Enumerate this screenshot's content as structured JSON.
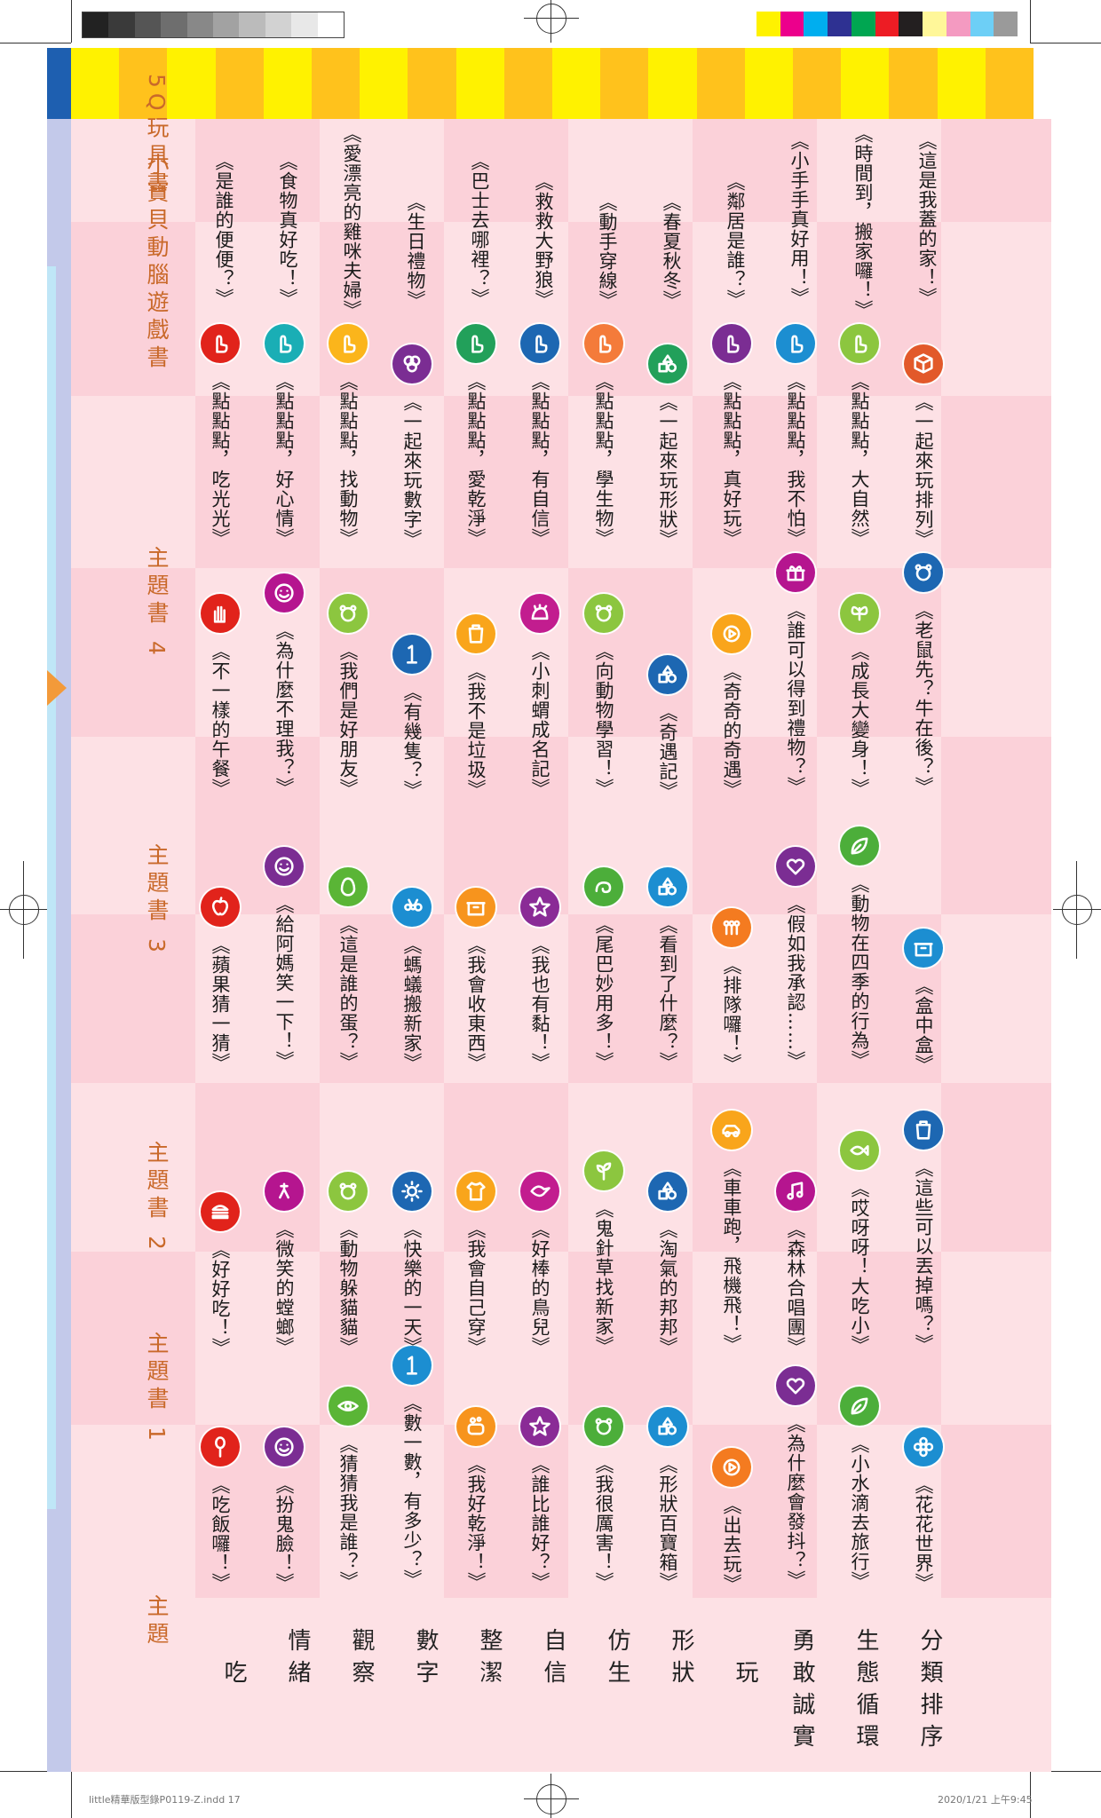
{
  "header": {
    "column_titles": [
      "主題",
      "主題書 1",
      "主題書 2",
      "主題書 3",
      "主題書 4",
      "小寶貝動腦遊戲書",
      "5Q玩具書"
    ]
  },
  "colors": {
    "page_pink": "#fde1e5",
    "band_pink": "#fbd1d9",
    "stripe_yellow": "#fff200",
    "stripe_orange": "#ffc21c",
    "title_orange": "#c9692a",
    "left_bar_blue": "#1e5fb0",
    "left_bar_lavender": "#c3c9ea"
  },
  "rows": [
    {
      "theme": "吃",
      "books": [
        {
          "title": "《吃飯囉！》",
          "icon": "spoon-icon",
          "color": "#e1231b"
        },
        {
          "title": "《好好吃！》",
          "icon": "hamburger-icon",
          "color": "#e1231b"
        },
        {
          "title": "《蘋果猜一猜》",
          "icon": "apple-icon",
          "color": "#e1231b"
        },
        {
          "title": "《不一樣的午餐》",
          "icon": "hand-icon",
          "color": "#e1231b"
        },
        {
          "title": "《點點點，吃光光》",
          "icon": "finger-icon",
          "color": "#e1231b"
        },
        {
          "title": "《是誰的便便？》"
        }
      ]
    },
    {
      "theme": "情緒",
      "books": [
        {
          "title": "《扮鬼臉！》",
          "icon": "face-icon",
          "color": "#7b2d93"
        },
        {
          "title": "《微笑的螳螂》",
          "icon": "mantis-icon",
          "color": "#b5158f"
        },
        {
          "title": "《給阿媽笑一下！》",
          "icon": "face-icon",
          "color": "#7b2d93"
        },
        {
          "title": "《為什麼不理我？》",
          "icon": "face-icon",
          "color": "#b5158f"
        },
        {
          "title": "《點點點，好心情》",
          "icon": "finger-icon",
          "color": "#1aaeb5"
        },
        {
          "title": "《食物真好吃！》"
        }
      ]
    },
    {
      "theme": "觀察",
      "books": [
        {
          "title": "《猜猜我是誰？》",
          "icon": "eye-icon",
          "color": "#5ab536"
        },
        {
          "title": "《動物躲貓貓》",
          "icon": "animal-icon",
          "color": "#8cc63f"
        },
        {
          "title": "《這是誰的蛋？》",
          "icon": "egg-icon",
          "color": "#5ab536"
        },
        {
          "title": "《我們是好朋友》",
          "icon": "animal-icon",
          "color": "#8cc63f"
        },
        {
          "title": "《點點點，找動物》",
          "icon": "finger-icon",
          "color": "#fbb51b"
        },
        {
          "title": "《愛漂亮的雞咪夫婦》"
        }
      ]
    },
    {
      "theme": "數字",
      "books": [
        {
          "title": "《數一數，有多少？》",
          "icon": "number-icon",
          "color": "#1c8ed1"
        },
        {
          "title": "《快樂的一天》",
          "icon": "sun-icon",
          "color": "#1d67b2"
        },
        {
          "title": "《螞蟻搬新家》",
          "icon": "ant-icon",
          "color": "#1c8ed1"
        },
        {
          "title": "《有幾隻？》",
          "icon": "number-icon",
          "color": "#1d67b2"
        },
        {
          "title": "《一起來玩數字》",
          "icon": "balloon-icon",
          "color": "#7b2d93"
        },
        {
          "title": "《生日禮物》"
        }
      ]
    },
    {
      "theme": "整潔",
      "books": [
        {
          "title": "《我好乾淨！》",
          "icon": "soap-icon",
          "color": "#f7941d"
        },
        {
          "title": "《我會自己穿》",
          "icon": "shirt-icon",
          "color": "#f9a51b"
        },
        {
          "title": "《我會收東西》",
          "icon": "box-icon",
          "color": "#f7941d"
        },
        {
          "title": "《我不是垃圾》",
          "icon": "bin-icon",
          "color": "#f9a51b"
        },
        {
          "title": "《點點點，愛乾淨》",
          "icon": "finger-icon",
          "color": "#22a05a"
        },
        {
          "title": "《巴士去哪裡？》"
        }
      ]
    },
    {
      "theme": "自信",
      "books": [
        {
          "title": "《誰比誰好？》",
          "icon": "star-icon",
          "color": "#8a2b96"
        },
        {
          "title": "《好棒的鳥兒》",
          "icon": "bird-icon",
          "color": "#c21d8f"
        },
        {
          "title": "《我也有黏！》",
          "icon": "star-icon",
          "color": "#8a2b96"
        },
        {
          "title": "《小刺蝟成名記》",
          "icon": "hedgehog-icon",
          "color": "#c21d8f"
        },
        {
          "title": "《點點點，有自信》",
          "icon": "finger-icon",
          "color": "#1d67b2"
        },
        {
          "title": "《救救大野狼》"
        }
      ]
    },
    {
      "theme": "仿生",
      "books": [
        {
          "title": "《我很厲害！》",
          "icon": "animal-icon",
          "color": "#4cae3a"
        },
        {
          "title": "《鬼針草找新家》",
          "icon": "plant-icon",
          "color": "#8cc63f"
        },
        {
          "title": "《尾巴妙用多！》",
          "icon": "tail-icon",
          "color": "#4cae3a"
        },
        {
          "title": "《向動物學習！》",
          "icon": "animal-icon",
          "color": "#8cc63f"
        },
        {
          "title": "《點點點，學生物》",
          "icon": "finger-icon",
          "color": "#f47b3a"
        },
        {
          "title": "《動手穿線》"
        }
      ]
    },
    {
      "theme": "形狀",
      "books": [
        {
          "title": "《形狀百寶箱》",
          "icon": "shape-icon",
          "color": "#1c8ed1"
        },
        {
          "title": "《淘氣的邦邦》",
          "icon": "shape-icon",
          "color": "#1d67b2"
        },
        {
          "title": "《看到了什麼？》",
          "icon": "shape-icon",
          "color": "#1c8ed1"
        },
        {
          "title": "《奇遇記》",
          "icon": "shape-icon",
          "color": "#1d67b2"
        },
        {
          "title": "《一起來玩形狀》",
          "icon": "shape-icon",
          "color": "#22a05a"
        },
        {
          "title": "《春夏秋冬》"
        }
      ]
    },
    {
      "theme": "玩",
      "books": [
        {
          "title": "《出去玩》",
          "icon": "play-icon",
          "color": "#f47b20"
        },
        {
          "title": "《車車跑，飛機飛！》",
          "icon": "car-icon",
          "color": "#f9a51b"
        },
        {
          "title": "《排隊囉！》",
          "icon": "queue-icon",
          "color": "#f47b20"
        },
        {
          "title": "《奇奇的奇遇》",
          "icon": "play-icon",
          "color": "#f9a51b"
        },
        {
          "title": "《點點點，真好玩》",
          "icon": "finger-icon",
          "color": "#7b2d93"
        },
        {
          "title": "《鄰居是誰？》"
        }
      ]
    },
    {
      "theme": "勇敢誠實",
      "books": [
        {
          "title": "《為什麼會發抖？》",
          "icon": "heart-icon",
          "color": "#7b2d93"
        },
        {
          "title": "《森林合唱團》",
          "icon": "music-icon",
          "color": "#b5158f"
        },
        {
          "title": "《假如我承認……》",
          "icon": "heart-icon",
          "color": "#7b2d93"
        },
        {
          "title": "《誰可以得到禮物？》",
          "icon": "gift-icon",
          "color": "#b5158f"
        },
        {
          "title": "《點點點，我不怕》",
          "icon": "finger-icon",
          "color": "#1c8ed1"
        },
        {
          "title": "《小手手真好用！》"
        }
      ]
    },
    {
      "theme": "生態循環",
      "books": [
        {
          "title": "《小水滴去旅行》",
          "icon": "leaf-icon",
          "color": "#4cae3a"
        },
        {
          "title": "《哎呀呀！大吃小》",
          "icon": "fish-icon",
          "color": "#8cc63f"
        },
        {
          "title": "《動物在四季的行為》",
          "icon": "leaf-icon",
          "color": "#4cae3a"
        },
        {
          "title": "《成長大變身！》",
          "icon": "butterfly-icon",
          "color": "#8cc63f"
        },
        {
          "title": "《點點點，大自然》",
          "icon": "finger-icon",
          "color": "#8cc63f"
        },
        {
          "title": "《時間到，搬家囉！》"
        }
      ]
    },
    {
      "theme": "分類排序",
      "books": [
        {
          "title": "《花花世界》",
          "icon": "flower-icon",
          "color": "#1c8ed1"
        },
        {
          "title": "《這些可以丟掉嗎？》",
          "icon": "bin-icon",
          "color": "#1d67b2"
        },
        {
          "title": "《盒中盒》",
          "icon": "box-icon",
          "color": "#1c8ed1"
        },
        {
          "title": "《老鼠先？牛在後？》",
          "icon": "animal-icon",
          "color": "#1d67b2"
        },
        {
          "title": "《一起來玩排列》",
          "icon": "cube-icon",
          "color": "#e2592a"
        },
        {
          "title": "《這是我蓋的家！》"
        }
      ]
    }
  ],
  "footer": {
    "file_label": "little精華版型錄P0119-Z.indd   17",
    "timestamp": "2020/1/21   上午9:45"
  }
}
